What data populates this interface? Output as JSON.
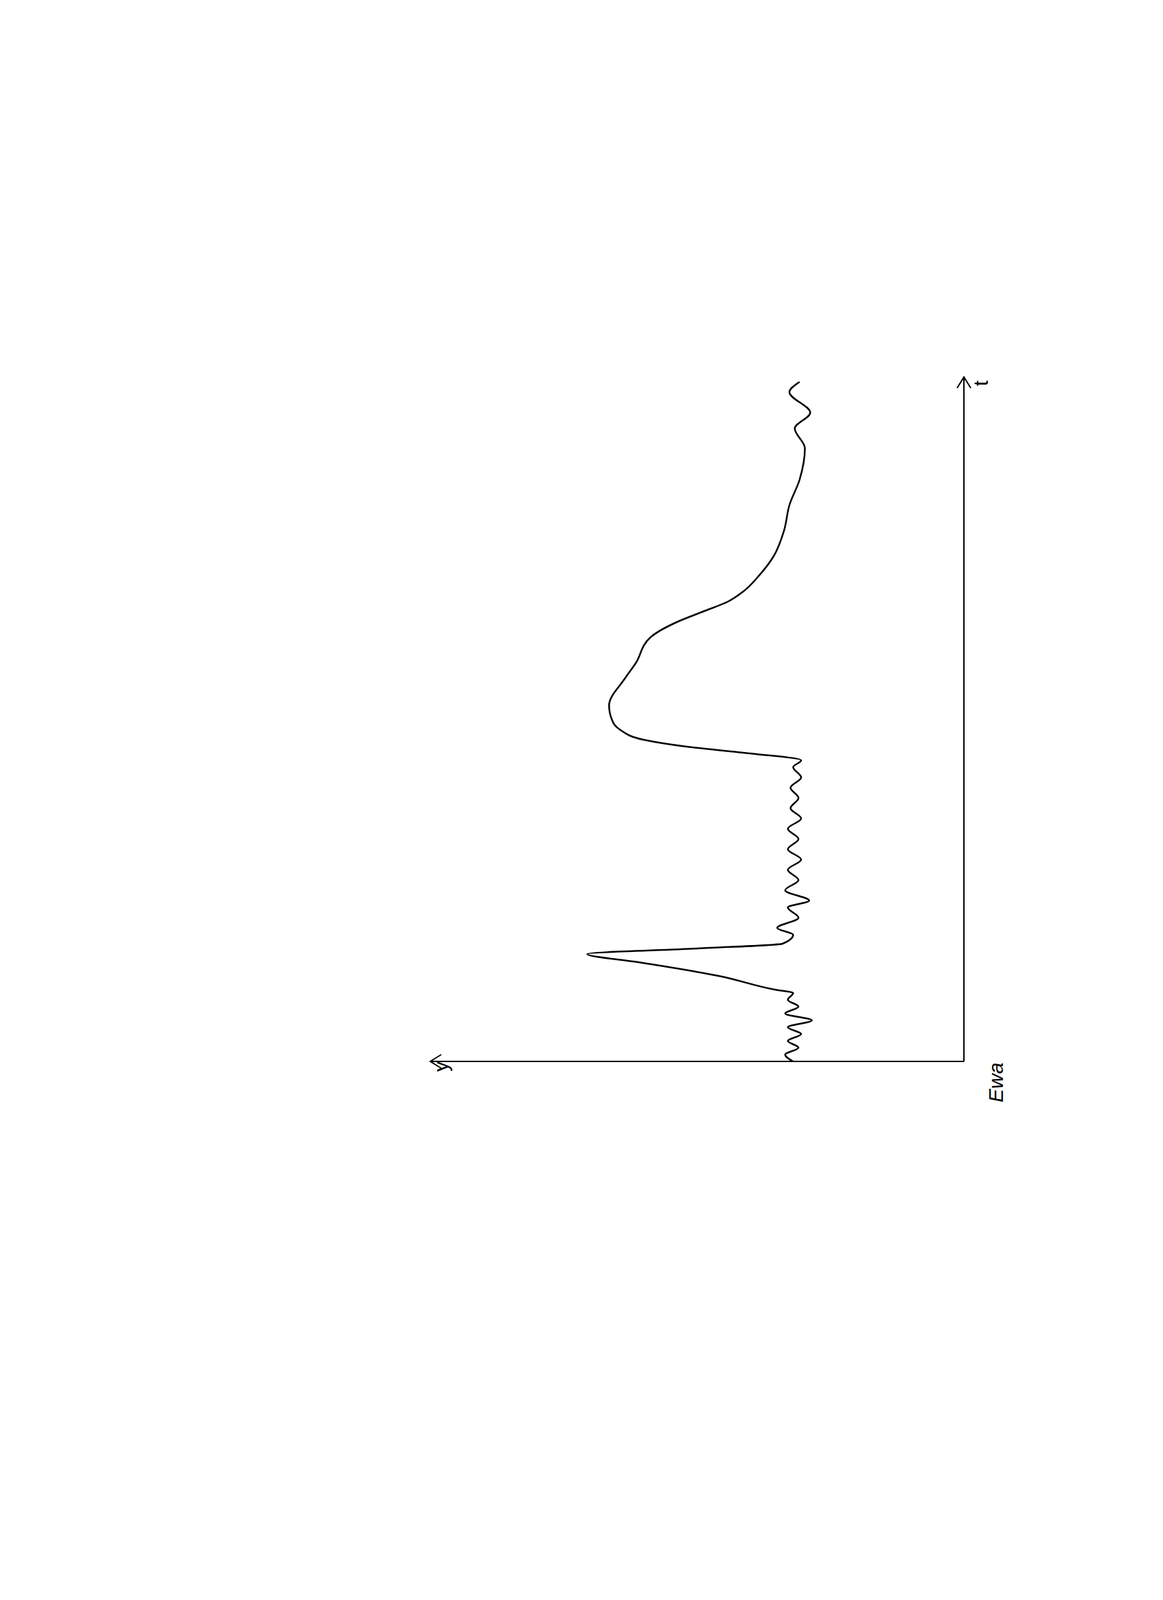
{
  "chart_data": {
    "type": "line",
    "x_label": "t",
    "y_label": "y",
    "annotation": "Ewa",
    "color": "#000000",
    "tick_labels": false,
    "grid": false,
    "xlim": [
      0,
      10
    ],
    "ylim": [
      0,
      10
    ],
    "x": [
      0,
      0.1,
      0.2,
      0.3,
      0.4,
      0.5,
      0.6,
      0.7,
      0.8,
      0.9,
      1.0,
      1.05,
      1.25,
      1.45,
      1.57,
      1.65,
      1.72,
      1.85,
      1.95,
      2.1,
      2.25,
      2.35,
      2.5,
      2.65,
      2.8,
      2.95,
      3.1,
      3.25,
      3.4,
      3.55,
      3.7,
      3.85,
      4.0,
      4.15,
      4.3,
      4.4,
      4.5,
      4.6,
      4.7,
      4.85,
      5.0,
      5.2,
      5.6,
      5.82,
      6.2,
      6.42,
      6.57,
      6.72,
      6.87,
      7.09,
      7.39,
      7.76,
      8.13,
      8.5,
      8.96,
      9.25,
      9.48,
      9.78,
      9.93
    ],
    "values": [
      3.2,
      3.35,
      3.1,
      3.3,
      3.05,
      3.3,
      2.85,
      3.35,
      3.1,
      3.3,
      3.2,
      3.55,
      4.6,
      6.1,
      7.06,
      5.0,
      3.4,
      3.2,
      3.5,
      3.1,
      3.3,
      2.9,
      3.35,
      3.1,
      3.3,
      3.05,
      3.3,
      3.1,
      3.3,
      3.05,
      3.25,
      3.1,
      3.25,
      3.05,
      3.2,
      3.05,
      4.0,
      5.2,
      6.0,
      6.45,
      6.6,
      6.65,
      6.35,
      6.15,
      5.87,
      5.38,
      4.9,
      4.42,
      4.13,
      3.85,
      3.56,
      3.37,
      3.27,
      3.08,
      2.98,
      3.17,
      2.88,
      3.27,
      3.08
    ]
  }
}
